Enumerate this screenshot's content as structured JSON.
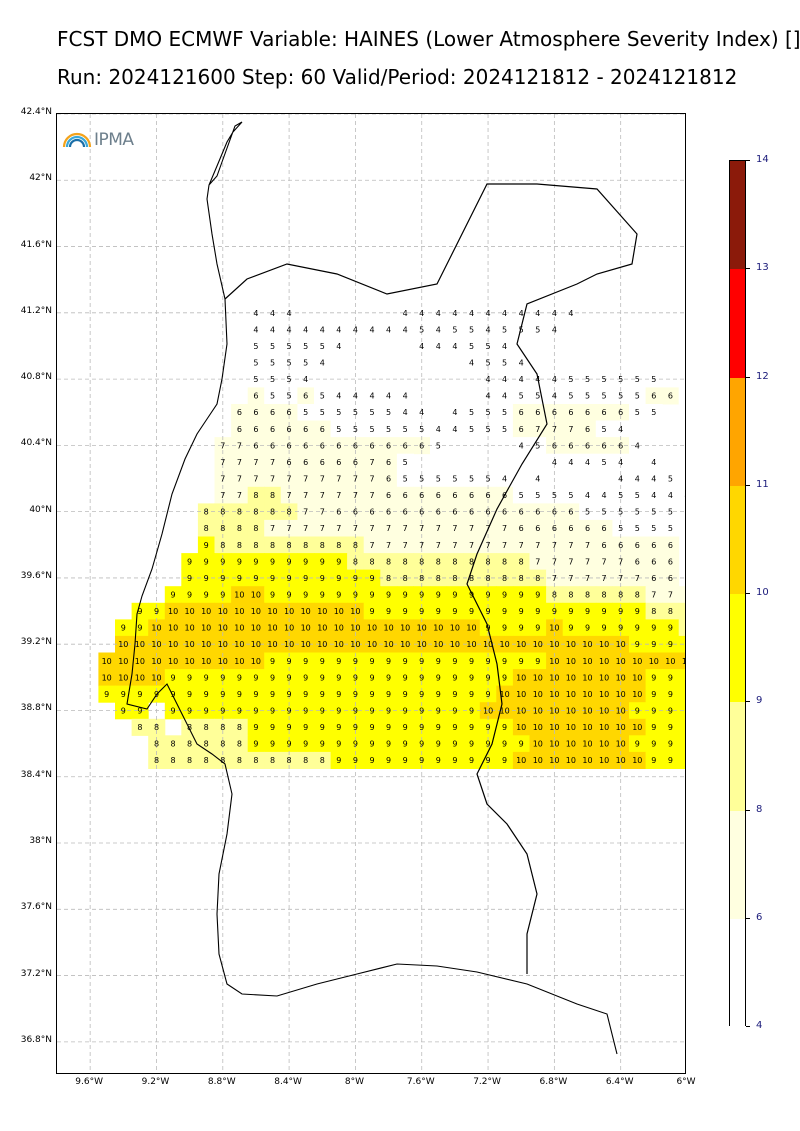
{
  "header": {
    "title_line1": "FCST DMO ECMWF Variable: HAINES (Lower Atmosphere Severity Index) []",
    "title_line2": "Run: 2024121600 Step: 60 Valid/Period: 2024121812 - 2024121812"
  },
  "logo": {
    "text": "IPMA",
    "icon": "rainbow-arc-icon"
  },
  "axes": {
    "lat_labels": [
      "42.4°N",
      "42°N",
      "41.6°N",
      "41.2°N",
      "40.8°N",
      "40.4°N",
      "40°N",
      "39.6°N",
      "39.2°N",
      "38.8°N",
      "38.4°N",
      "38°N",
      "37.6°N",
      "37.2°N",
      "36.8°N"
    ],
    "lat_values": [
      42.4,
      42.0,
      41.6,
      41.2,
      40.8,
      40.4,
      40.0,
      39.6,
      39.2,
      38.8,
      38.4,
      38.0,
      37.6,
      37.2,
      36.8
    ],
    "lon_labels": [
      "9.6°W",
      "9.2°W",
      "8.8°W",
      "8.4°W",
      "8°W",
      "7.6°W",
      "7.2°W",
      "6.8°W",
      "6.4°W",
      "6°W"
    ],
    "lon_values": [
      -9.6,
      -9.2,
      -8.8,
      -8.4,
      -8.0,
      -7.6,
      -7.2,
      -6.8,
      -6.4,
      -6.0
    ],
    "lon_range": [
      -9.8,
      -6.0
    ],
    "lat_range": [
      36.6,
      42.4
    ],
    "grid": true
  },
  "colorbar": {
    "labels": [
      "14",
      "13",
      "12",
      "11",
      "10",
      "9",
      "8",
      "6",
      "4"
    ],
    "levels": [
      14,
      13,
      12,
      11,
      10,
      9,
      8,
      6,
      4
    ],
    "segments": [
      {
        "from": 13,
        "to": 14,
        "color": "#8b1a0a"
      },
      {
        "from": 12,
        "to": 13,
        "color": "#ff0000"
      },
      {
        "from": 11,
        "to": 12,
        "color": "#ffa500"
      },
      {
        "from": 10,
        "to": 11,
        "color": "#ffd700"
      },
      {
        "from": 9,
        "to": 10,
        "color": "#ffff00"
      },
      {
        "from": 8,
        "to": 9,
        "color": "#ffff99"
      },
      {
        "from": 6,
        "to": 8,
        "color": "#ffffe0"
      },
      {
        "from": 4,
        "to": 6,
        "color": "#ffffff"
      }
    ]
  },
  "chart_data": {
    "type": "heatmap",
    "grid_spacing_deg": 0.1,
    "rows": [
      {
        "lat": 41.2,
        "start_lon": -8.6,
        "values": [
          4,
          4,
          4,
          null,
          null,
          null,
          null,
          null,
          null,
          4,
          4,
          4,
          4,
          4,
          4,
          4,
          4,
          4,
          4,
          4
        ]
      },
      {
        "lat": 41.1,
        "start_lon": -8.6,
        "values": [
          4,
          4,
          4,
          4,
          4,
          4,
          4,
          4,
          4,
          4,
          5,
          4,
          5,
          5,
          4,
          5,
          5,
          5,
          4
        ]
      },
      {
        "lat": 41.0,
        "start_lon": -8.6,
        "values": [
          5,
          5,
          5,
          5,
          5,
          4,
          null,
          null,
          null,
          null,
          4,
          4,
          4,
          5,
          5,
          4
        ]
      },
      {
        "lat": 40.9,
        "start_lon": -8.6,
        "values": [
          5,
          5,
          5,
          5,
          4,
          null,
          null,
          null,
          null,
          null,
          null,
          null,
          null,
          4,
          5,
          5,
          4
        ]
      },
      {
        "lat": 40.8,
        "start_lon": -8.6,
        "values": [
          5,
          5,
          5,
          4,
          null,
          null,
          null,
          null,
          null,
          null,
          null,
          null,
          null,
          null,
          4,
          4,
          4,
          4,
          4,
          5,
          5,
          5,
          5,
          5,
          5
        ]
      },
      {
        "lat": 40.7,
        "start_lon": -8.6,
        "values": [
          6,
          5,
          5,
          6,
          5,
          4,
          4,
          4,
          4,
          4,
          null,
          null,
          null,
          null,
          4,
          4,
          5,
          5,
          4,
          5,
          5,
          5,
          5,
          5,
          6,
          6,
          5
        ]
      },
      {
        "lat": 40.6,
        "start_lon": -8.7,
        "values": [
          6,
          6,
          6,
          6,
          5,
          5,
          5,
          5,
          5,
          5,
          4,
          4,
          null,
          4,
          5,
          5,
          5,
          6,
          6,
          6,
          6,
          6,
          6,
          6,
          5,
          5
        ]
      },
      {
        "lat": 40.5,
        "start_lon": -8.7,
        "values": [
          6,
          6,
          6,
          6,
          6,
          6,
          5,
          5,
          5,
          5,
          5,
          5,
          4,
          4,
          5,
          5,
          5,
          6,
          7,
          7,
          7,
          6,
          5,
          4
        ]
      },
      {
        "lat": 40.4,
        "start_lon": -8.8,
        "values": [
          7,
          7,
          6,
          6,
          6,
          6,
          6,
          6,
          6,
          6,
          6,
          6,
          6,
          5,
          null,
          null,
          null,
          null,
          4,
          5,
          6,
          6,
          6,
          6,
          6,
          4
        ]
      },
      {
        "lat": 40.3,
        "start_lon": -8.8,
        "values": [
          7,
          7,
          7,
          7,
          6,
          6,
          6,
          6,
          6,
          7,
          6,
          5,
          null,
          null,
          null,
          null,
          null,
          null,
          null,
          null,
          4,
          4,
          4,
          5,
          4,
          null,
          4
        ]
      },
      {
        "lat": 40.2,
        "start_lon": -8.8,
        "values": [
          7,
          7,
          7,
          7,
          7,
          7,
          7,
          7,
          7,
          7,
          6,
          5,
          5,
          5,
          5,
          5,
          5,
          4,
          null,
          4,
          null,
          null,
          null,
          null,
          4,
          4,
          4,
          5
        ]
      },
      {
        "lat": 40.1,
        "start_lon": -8.8,
        "values": [
          7,
          7,
          8,
          8,
          7,
          7,
          7,
          7,
          7,
          7,
          6,
          6,
          6,
          6,
          6,
          6,
          6,
          6,
          5,
          5,
          5,
          5,
          4,
          4,
          5,
          5,
          4,
          4,
          4
        ]
      },
      {
        "lat": 40.0,
        "start_lon": -8.9,
        "values": [
          8,
          8,
          8,
          8,
          8,
          8,
          7,
          7,
          6,
          6,
          6,
          6,
          6,
          6,
          6,
          6,
          6,
          6,
          6,
          6,
          6,
          6,
          6,
          5,
          5,
          5,
          5,
          5,
          5
        ]
      },
      {
        "lat": 39.9,
        "start_lon": -8.9,
        "values": [
          8,
          8,
          8,
          8,
          7,
          7,
          7,
          7,
          7,
          7,
          7,
          7,
          7,
          7,
          7,
          7,
          7,
          7,
          7,
          6,
          6,
          6,
          6,
          6,
          6,
          5,
          5,
          5,
          5
        ]
      },
      {
        "lat": 39.8,
        "start_lon": -8.9,
        "values": [
          9,
          8,
          8,
          8,
          8,
          8,
          8,
          8,
          8,
          8,
          7,
          7,
          7,
          7,
          7,
          7,
          7,
          7,
          7,
          7,
          7,
          7,
          7,
          7,
          6,
          6,
          6,
          6,
          6
        ]
      },
      {
        "lat": 39.7,
        "start_lon": -9.0,
        "values": [
          9,
          9,
          9,
          9,
          9,
          9,
          9,
          9,
          9,
          9,
          8,
          8,
          8,
          8,
          8,
          8,
          8,
          8,
          8,
          8,
          8,
          7,
          7,
          7,
          7,
          7,
          7,
          6,
          6,
          6
        ]
      },
      {
        "lat": 39.6,
        "start_lon": -9.0,
        "values": [
          9,
          9,
          9,
          9,
          9,
          9,
          9,
          9,
          9,
          9,
          9,
          9,
          8,
          8,
          8,
          8,
          8,
          8,
          8,
          8,
          8,
          8,
          7,
          7,
          7,
          7,
          7,
          7,
          6,
          6
        ]
      },
      {
        "lat": 39.5,
        "start_lon": -9.1,
        "values": [
          9,
          9,
          9,
          9,
          10,
          10,
          9,
          9,
          9,
          9,
          9,
          9,
          9,
          9,
          9,
          9,
          9,
          9,
          9,
          9,
          9,
          9,
          9,
          8,
          8,
          8,
          8,
          8,
          8,
          7,
          7,
          7
        ]
      },
      {
        "lat": 39.4,
        "start_lon": -9.3,
        "values": [
          9,
          9,
          10,
          10,
          10,
          10,
          10,
          10,
          10,
          10,
          10,
          10,
          10,
          10,
          9,
          9,
          9,
          9,
          9,
          9,
          9,
          9,
          9,
          9,
          9,
          9,
          9,
          9,
          9,
          9,
          9,
          8,
          8,
          8
        ]
      },
      {
        "lat": 39.3,
        "start_lon": -9.4,
        "values": [
          9,
          9,
          10,
          10,
          10,
          10,
          10,
          10,
          10,
          10,
          10,
          10,
          10,
          10,
          10,
          10,
          10,
          10,
          10,
          10,
          10,
          10,
          9,
          9,
          9,
          9,
          10,
          9,
          9,
          9,
          9,
          9,
          9,
          9,
          8,
          8
        ]
      },
      {
        "lat": 39.2,
        "start_lon": -9.4,
        "values": [
          10,
          10,
          10,
          10,
          10,
          10,
          10,
          10,
          10,
          10,
          10,
          10,
          10,
          10,
          10,
          10,
          10,
          10,
          10,
          10,
          10,
          10,
          10,
          10,
          10,
          10,
          10,
          10,
          10,
          10,
          10,
          9,
          9,
          9,
          9,
          9
        ]
      },
      {
        "lat": 39.1,
        "start_lon": -9.5,
        "values": [
          10,
          10,
          10,
          10,
          10,
          10,
          10,
          10,
          10,
          10,
          9,
          9,
          9,
          9,
          9,
          9,
          9,
          9,
          9,
          9,
          9,
          9,
          9,
          9,
          9,
          9,
          9,
          10,
          10,
          10,
          10,
          10,
          10,
          10,
          10,
          10,
          9,
          9
        ]
      },
      {
        "lat": 39.0,
        "start_lon": -9.5,
        "values": [
          10,
          10,
          10,
          10,
          9,
          9,
          9,
          9,
          9,
          9,
          9,
          9,
          9,
          9,
          9,
          9,
          9,
          9,
          9,
          9,
          9,
          9,
          9,
          9,
          9,
          10,
          10,
          10,
          10,
          10,
          10,
          10,
          10,
          9,
          9,
          9,
          9,
          9
        ]
      },
      {
        "lat": 38.9,
        "start_lon": -9.5,
        "values": [
          9,
          9,
          9,
          9,
          9,
          9,
          9,
          9,
          9,
          9,
          9,
          9,
          9,
          9,
          9,
          9,
          9,
          9,
          9,
          9,
          9,
          9,
          9,
          9,
          10,
          10,
          10,
          10,
          10,
          10,
          10,
          10,
          10,
          9,
          9,
          9,
          9,
          9
        ]
      },
      {
        "lat": 38.8,
        "start_lon": -9.4,
        "values": [
          9,
          9,
          null,
          9,
          9,
          9,
          9,
          9,
          9,
          9,
          9,
          9,
          9,
          9,
          9,
          9,
          9,
          9,
          9,
          9,
          9,
          9,
          10,
          10,
          10,
          10,
          10,
          10,
          10,
          10,
          10,
          9,
          9,
          9,
          9,
          9
        ]
      },
      {
        "lat": 38.7,
        "start_lon": -9.3,
        "values": [
          8,
          8,
          null,
          8,
          8,
          8,
          8,
          9,
          9,
          9,
          9,
          9,
          9,
          9,
          9,
          9,
          9,
          9,
          9,
          9,
          9,
          9,
          9,
          10,
          10,
          10,
          10,
          10,
          10,
          10,
          10,
          9,
          9,
          9
        ]
      },
      {
        "lat": 38.6,
        "start_lon": -9.2,
        "values": [
          8,
          8,
          8,
          8,
          8,
          8,
          9,
          9,
          9,
          9,
          9,
          9,
          9,
          9,
          9,
          9,
          9,
          9,
          9,
          9,
          9,
          9,
          9,
          10,
          10,
          10,
          10,
          10,
          10,
          9,
          9,
          9,
          9
        ]
      },
      {
        "lat": 38.5,
        "start_lon": -9.2,
        "values": [
          8,
          8,
          8,
          8,
          8,
          8,
          8,
          8,
          8,
          8,
          8,
          9,
          9,
          9,
          9,
          9,
          9,
          9,
          9,
          9,
          9,
          9,
          10,
          10,
          10,
          10,
          10,
          10,
          10,
          10,
          9,
          9,
          9
        ]
      }
    ],
    "note": null
  }
}
